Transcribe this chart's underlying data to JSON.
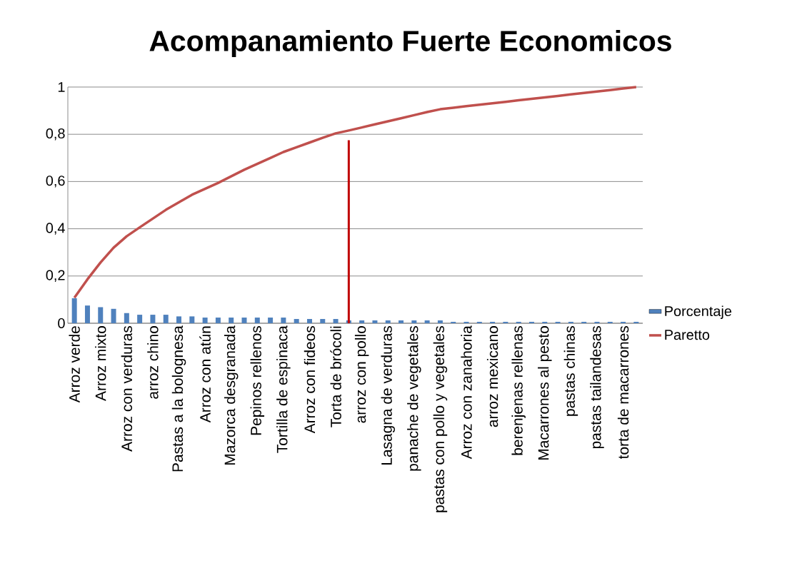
{
  "chart_data": {
    "type": "bar",
    "title": "Acompanamiento Fuerte Economicos",
    "categories": [
      "Arroz verde",
      null,
      "Arroz mixto",
      null,
      "Arroz con verduras",
      null,
      "arroz chino",
      null,
      "Pastas a la bolognesa",
      null,
      "Arroz con atún",
      null,
      "Mazorca desgranada",
      null,
      "Pepinos rellenos",
      null,
      "Tortilla de espinaca",
      null,
      "Arroz con fideos",
      null,
      "Torta de brócoli",
      null,
      "arroz con pollo",
      null,
      "Lasagna de verduras",
      null,
      "panache de vegetales",
      null,
      "pastas con pollo y vegetales",
      null,
      "Arroz con zanahoria",
      null,
      "arroz mexicano",
      null,
      "berenjenas rellenas",
      null,
      "Macarrones al pesto",
      null,
      "pastas chinas",
      null,
      "pastas tailandesas",
      null,
      "torta de macarrones",
      null
    ],
    "series": [
      {
        "name": "Porcentaje",
        "color": "#4f81bd",
        "values": [
          0.106,
          0.075,
          0.068,
          0.061,
          0.043,
          0.036,
          0.036,
          0.036,
          0.029,
          0.029,
          0.024,
          0.024,
          0.024,
          0.024,
          0.024,
          0.024,
          0.024,
          0.018,
          0.018,
          0.018,
          0.018,
          0.012,
          0.012,
          0.012,
          0.012,
          0.012,
          0.012,
          0.012,
          0.012,
          0.006,
          0.006,
          0.006,
          0.006,
          0.006,
          0.006,
          0.006,
          0.006,
          0.006,
          0.006,
          0.006,
          0.006,
          0.006,
          0.006,
          0.006
        ]
      },
      {
        "name": "Paretto",
        "type": "line",
        "color": "#c0504d",
        "values": [
          0.108,
          0.186,
          0.257,
          0.32,
          0.368,
          0.406,
          0.443,
          0.48,
          0.512,
          0.544,
          0.569,
          0.594,
          0.622,
          0.65,
          0.675,
          0.7,
          0.725,
          0.745,
          0.765,
          0.785,
          0.804,
          0.816,
          0.829,
          0.842,
          0.855,
          0.868,
          0.881,
          0.894,
          0.906,
          0.912,
          0.919,
          0.925,
          0.931,
          0.937,
          0.944,
          0.95,
          0.956,
          0.962,
          0.969,
          0.975,
          0.981,
          0.987,
          0.994,
          1.0
        ]
      },
      {
        "type": "bar",
        "color": "#c00000",
        "values": [
          null,
          null,
          null,
          null,
          null,
          null,
          null,
          null,
          null,
          null,
          null,
          null,
          null,
          null,
          null,
          null,
          null,
          null,
          null,
          null,
          null,
          0.775,
          null,
          null,
          null,
          null,
          null,
          null,
          null,
          null,
          null,
          null,
          null,
          null,
          null,
          null,
          null,
          null,
          null,
          null,
          null,
          null,
          null,
          null
        ]
      }
    ],
    "ylim": [
      0,
      1
    ],
    "yticks": [
      0,
      {
        "value": 0.2,
        "label": "0,2"
      },
      {
        "value": 0.4,
        "label": "0,4"
      },
      {
        "value": 0.6,
        "label": "0,6"
      },
      {
        "value": 0.8,
        "label": "0,8"
      },
      1
    ],
    "grid": "y",
    "legend": "right"
  }
}
